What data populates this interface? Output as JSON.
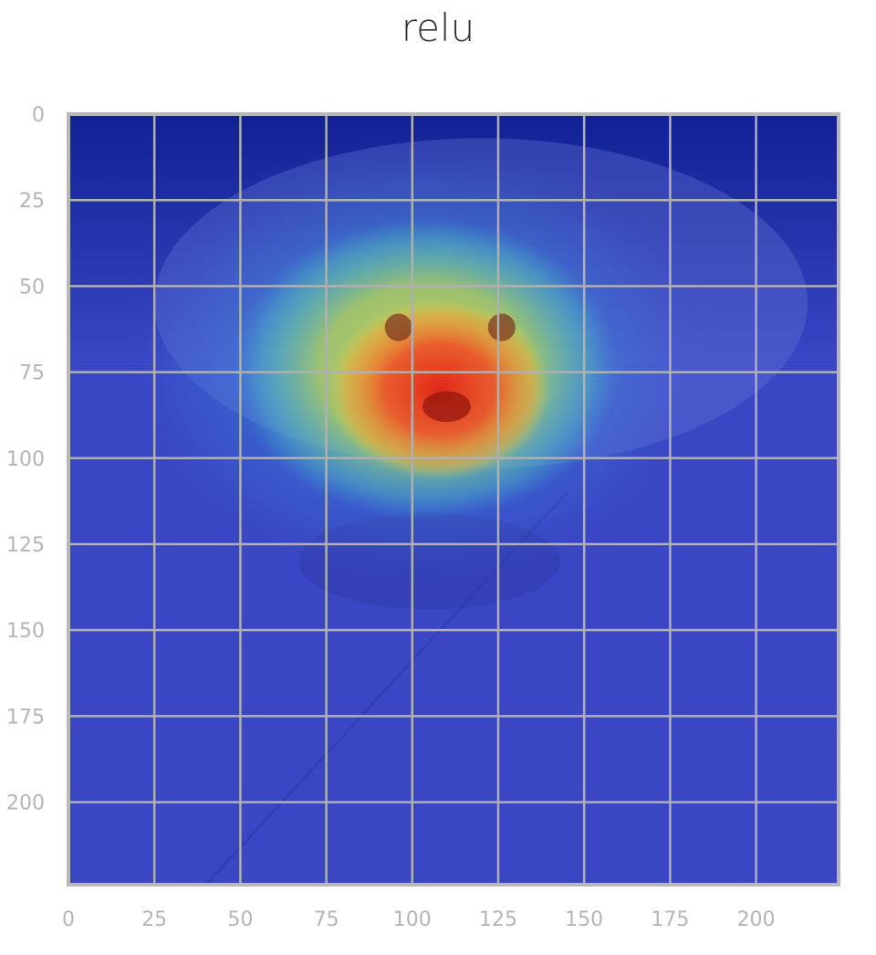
{
  "chart_data": {
    "type": "heatmap",
    "title": "relu",
    "xlabel": "",
    "ylabel": "",
    "xlim": [
      0,
      224
    ],
    "ylim": [
      224,
      0
    ],
    "y_axis_inverted": true,
    "grid": true,
    "x_ticks": [
      0,
      25,
      50,
      75,
      100,
      125,
      150,
      175,
      200
    ],
    "y_ticks": [
      0,
      25,
      50,
      75,
      100,
      125,
      150,
      175,
      200
    ],
    "colormap": "jet",
    "overlay": "class activation heatmap over photo",
    "hotspots": [
      {
        "x": 108,
        "y": 80,
        "sigma_x": 16,
        "sigma_y": 13,
        "intensity": 1.0
      },
      {
        "x": 104,
        "y": 74,
        "sigma_x": 28,
        "sigma_y": 22,
        "intensity": 0.8
      },
      {
        "x": 102,
        "y": 72,
        "sigma_x": 44,
        "sigma_y": 33,
        "intensity": 0.5
      }
    ],
    "colors": {
      "background_blue": "#3a46c4",
      "dark_blue": "#0a1a8c",
      "grid": "#b0b0b0",
      "frame": "#b8b8b8"
    }
  }
}
